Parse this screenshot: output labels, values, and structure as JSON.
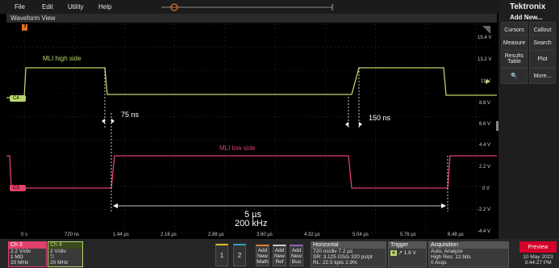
{
  "menu": {
    "items": [
      "File",
      "Edit",
      "Utility",
      "Help"
    ]
  },
  "brand": "Tektronix",
  "right_panel": {
    "title": "Add New...",
    "buttons": [
      "Cursors",
      "Callout",
      "Measure",
      "Search",
      "Results Table",
      "Plot",
      "More..."
    ]
  },
  "waveform": {
    "title": "Waveform View",
    "trigger_marker": "T",
    "ch4_label": "C4",
    "ch3_label": "C3",
    "y_labels": [
      "15.4 V",
      "13.2 V",
      "11 V",
      "8.8 V",
      "6.6 V",
      "4.4 V",
      "2.2 V",
      "0 V",
      "-2.2 V",
      "-4.4 V"
    ],
    "x_labels": [
      "0 s",
      "720 ns",
      "1.44 µs",
      "2.16 µs",
      "2.88 µs",
      "3.60 µs",
      "4.32 µs",
      "5.04 µs",
      "5.76 µs",
      "6.48 µs"
    ],
    "annotations": {
      "high_side": "MLI high side",
      "low_side": "MLI low side",
      "dead_time_1": "75 ns",
      "dead_time_2": "150 ns",
      "period": "5 µs",
      "frequency": "200 kHz"
    }
  },
  "bottom": {
    "ch3": {
      "label": "Ch 3",
      "lines": [
        "2.2 V/div",
        "1 MΩ",
        "20 MHz"
      ]
    },
    "ch4": {
      "label": "Ch 4",
      "lines": [
        "2 V/div",
        "",
        "20 MHz"
      ]
    },
    "num_buttons": [
      "1",
      "2"
    ],
    "add_buttons": [
      [
        "Add",
        "New",
        "Math"
      ],
      [
        "Add",
        "New",
        "Ref"
      ],
      [
        "Add",
        "New",
        "Bus"
      ]
    ],
    "horizontal": {
      "label": "Horizontal",
      "lines": [
        "720 ns/div     7.2 µs",
        "SR: 3.125 GS/s  320 ps/pt",
        "RL: 22.5 kpts    2.9%"
      ]
    },
    "trigger": {
      "label": "Trigger",
      "channel": "4",
      "level": "1.6 V"
    },
    "acquisition": {
      "label": "Acquisition",
      "lines": [
        "Auto,        Analyze",
        "High Res: 12 bits",
        "0 Acqs"
      ]
    },
    "preview": "Preview",
    "date": "10 May 2023",
    "time": "3:44:27 PM"
  },
  "colors": {
    "ch4": "#b8d66a",
    "ch3": "#e0406a",
    "background": "#000000",
    "accent": "#d4002a"
  }
}
